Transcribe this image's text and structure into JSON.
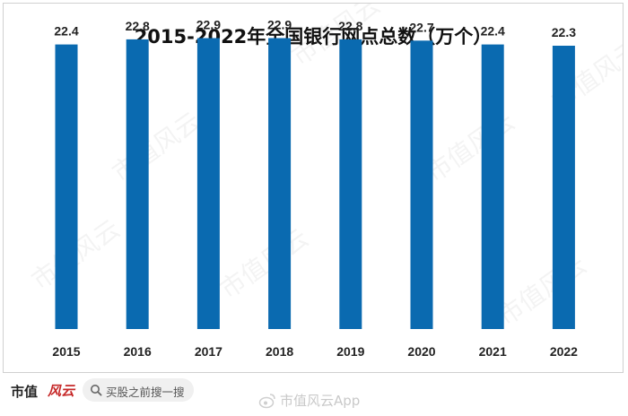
{
  "chart_data": {
    "type": "bar",
    "title": "2015-2022年全国银行网点总数（万个）",
    "categories": [
      "2015",
      "2016",
      "2017",
      "2018",
      "2019",
      "2020",
      "2021",
      "2022"
    ],
    "values": [
      22.4,
      22.8,
      22.9,
      22.9,
      22.8,
      22.7,
      22.4,
      22.3
    ],
    "value_labels": [
      "22.4",
      "22.8",
      "22.9",
      "22.9",
      "22.8",
      "22.7",
      "22.4",
      "22.3"
    ],
    "xlabel": "",
    "ylabel": "",
    "ylim": [
      0,
      23.5
    ],
    "grid": false,
    "legend": "none",
    "bar_color": "#0a6ab0"
  },
  "watermark": {
    "text": "市值风云"
  },
  "footer": {
    "brand": "市值",
    "brand_script": "风云",
    "search_text": "买股之前搜一搜",
    "weibo_watermark": "市值风云App"
  }
}
